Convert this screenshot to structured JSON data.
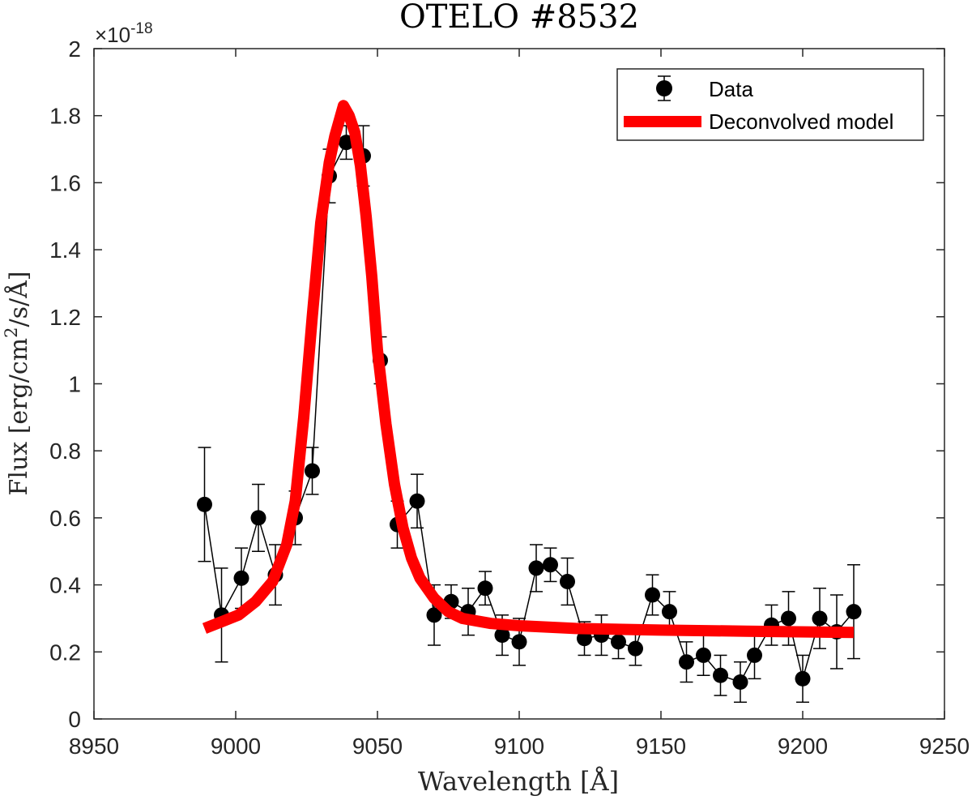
{
  "chart_data": {
    "type": "scatter",
    "title": "OTELO #8532",
    "xlabel": "Wavelength [Å]",
    "ylabel_main": "Flux [erg/cm",
    "ylabel_sup": "2",
    "ylabel_tail": "/s/Å]",
    "exponent_prefix": "×10",
    "exponent": "-18",
    "xlim": [
      8950,
      9250
    ],
    "ylim": [
      0,
      2
    ],
    "xticks": [
      "8950",
      "9000",
      "9050",
      "9100",
      "9150",
      "9200",
      "9250"
    ],
    "yticks": [
      "0",
      "0.2",
      "0.4",
      "0.6",
      "0.8",
      "1",
      "1.2",
      "1.4",
      "1.6",
      "1.8",
      "2"
    ],
    "xtick_values": [
      8950,
      9000,
      9050,
      9100,
      9150,
      9200,
      9250
    ],
    "ytick_values": [
      0,
      0.2,
      0.4,
      0.6,
      0.8,
      1.0,
      1.2,
      1.4,
      1.6,
      1.8,
      2.0
    ],
    "legend": {
      "position": "top-right",
      "entries": [
        "Data",
        "Deconvolved model"
      ]
    },
    "series": [
      {
        "name": "Data",
        "color": "#000000",
        "x": [
          8989,
          8995,
          9002,
          9008,
          9014,
          9021,
          9027,
          9033,
          9039,
          9045,
          9051,
          9057,
          9064,
          9070,
          9076,
          9082,
          9088,
          9094,
          9100,
          9106,
          9111,
          9117,
          9123,
          9129,
          9135,
          9141,
          9147,
          9153,
          9159,
          9165,
          9171,
          9178,
          9183,
          9189,
          9195,
          9200,
          9206,
          9212,
          9218
        ],
        "y": [
          0.64,
          0.31,
          0.42,
          0.6,
          0.43,
          0.6,
          0.74,
          1.62,
          1.72,
          1.68,
          1.07,
          0.58,
          0.65,
          0.31,
          0.35,
          0.32,
          0.39,
          0.25,
          0.23,
          0.45,
          0.46,
          0.41,
          0.24,
          0.25,
          0.23,
          0.21,
          0.37,
          0.32,
          0.17,
          0.19,
          0.13,
          0.11,
          0.19,
          0.28,
          0.3,
          0.12,
          0.3,
          0.26,
          0.32
        ],
        "err": [
          0.17,
          0.14,
          0.09,
          0.1,
          0.09,
          0.08,
          0.07,
          0.08,
          0.05,
          0.09,
          0.07,
          0.07,
          0.08,
          0.09,
          0.05,
          0.07,
          0.05,
          0.06,
          0.07,
          0.07,
          0.05,
          0.07,
          0.05,
          0.06,
          0.05,
          0.05,
          0.06,
          0.06,
          0.06,
          0.06,
          0.06,
          0.06,
          0.07,
          0.06,
          0.08,
          0.07,
          0.09,
          0.11,
          0.14
        ]
      },
      {
        "name": "Deconvolved model",
        "color": "#ff0000",
        "x": [
          8989,
          8995,
          9001,
          9007,
          9013,
          9018,
          9021,
          9024,
          9027,
          9030,
          9033,
          9035,
          9037,
          9038,
          9040,
          9042,
          9044,
          9046,
          9048,
          9050,
          9053,
          9056,
          9059,
          9062,
          9065,
          9070,
          9075,
          9080,
          9090,
          9100,
          9120,
          9150,
          9180,
          9218
        ],
        "y": [
          0.27,
          0.29,
          0.31,
          0.35,
          0.41,
          0.52,
          0.65,
          0.9,
          1.2,
          1.48,
          1.66,
          1.74,
          1.8,
          1.83,
          1.8,
          1.75,
          1.65,
          1.5,
          1.32,
          1.1,
          0.88,
          0.7,
          0.57,
          0.48,
          0.42,
          0.36,
          0.32,
          0.3,
          0.285,
          0.278,
          0.27,
          0.265,
          0.262,
          0.258
        ]
      }
    ]
  }
}
